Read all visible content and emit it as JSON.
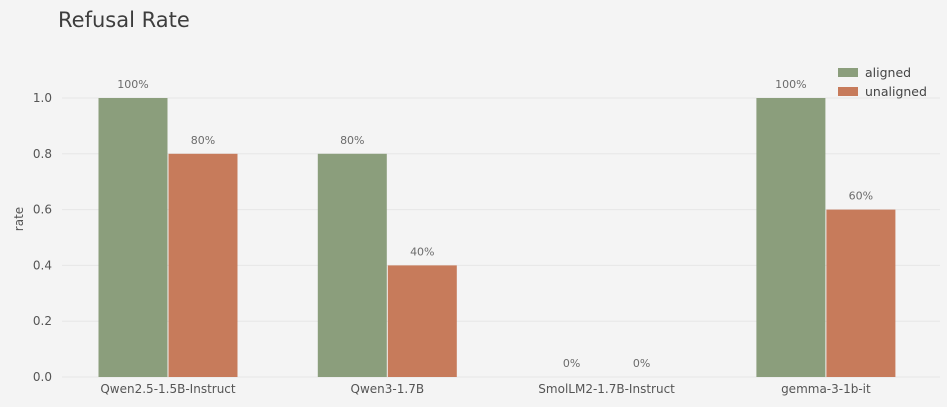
{
  "chart_data": {
    "type": "bar",
    "title": "Refusal Rate",
    "xlabel": "",
    "ylabel": "rate",
    "ylim": [
      0,
      1.0
    ],
    "yticks": [
      "0.0",
      "0.2",
      "0.4",
      "0.6",
      "0.8",
      "1.0"
    ],
    "grid": true,
    "legend_position": "top-right",
    "categories": [
      "Qwen2.5-1.5B-Instruct",
      "Qwen3-1.7B",
      "SmolLM2-1.7B-Instruct",
      "gemma-3-1b-it"
    ],
    "series": [
      {
        "name": "aligned",
        "color": "#8b9e7c",
        "values": [
          1.0,
          0.8,
          0.0,
          1.0
        ],
        "labels": [
          "100%",
          "80%",
          "0%",
          "100%"
        ]
      },
      {
        "name": "unaligned",
        "color": "#c77b5b",
        "values": [
          0.8,
          0.4,
          0.0,
          0.6
        ],
        "labels": [
          "80%",
          "40%",
          "0%",
          "60%"
        ]
      }
    ]
  }
}
